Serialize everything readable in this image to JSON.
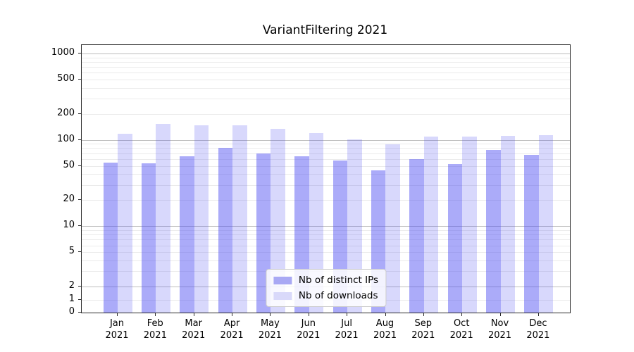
{
  "title": "VariantFiltering 2021",
  "chart_data": {
    "type": "bar",
    "title": "VariantFiltering 2021",
    "categories": [
      "Jan 2021",
      "Feb 2021",
      "Mar 2021",
      "Apr 2021",
      "May 2021",
      "Jun 2021",
      "Jul 2021",
      "Aug 2021",
      "Sep 2021",
      "Oct 2021",
      "Nov 2021",
      "Dec 2021"
    ],
    "series": [
      {
        "name": "Nb of distinct IPs",
        "values": [
          54,
          53,
          65,
          80,
          70,
          64,
          58,
          44,
          60,
          52,
          77,
          67
        ],
        "fill_color": "rgba(77,77,242,0.47)",
        "legend_color": "#a9a9f4"
      },
      {
        "name": "Nb of downloads",
        "values": [
          118,
          152,
          148,
          147,
          133,
          119,
          102,
          89,
          109,
          108,
          112,
          113
        ],
        "fill_color": "rgba(77,77,242,0.22)",
        "legend_color": "#d9d9fa"
      }
    ],
    "xlabel": "",
    "ylabel": "",
    "yscale": "log above 2, linear below 2",
    "ylim": [
      0,
      1250
    ],
    "ytick_labels": [
      "1000",
      "500",
      "200",
      "100",
      "50",
      "20",
      "10",
      "5",
      "2",
      "1",
      "0"
    ],
    "ytick_values": [
      1000,
      500,
      200,
      100,
      50,
      20,
      10,
      5,
      2,
      1,
      0
    ],
    "major_grid_values": [
      1000,
      100,
      10,
      2
    ],
    "minor_grid_values": [
      900,
      800,
      700,
      600,
      500,
      400,
      300,
      200,
      90,
      80,
      70,
      60,
      50,
      40,
      30,
      20,
      9,
      8,
      7,
      6,
      5,
      4,
      3,
      1
    ],
    "grid": "horizontal, major and minor lines",
    "legend_position": "lower center"
  }
}
